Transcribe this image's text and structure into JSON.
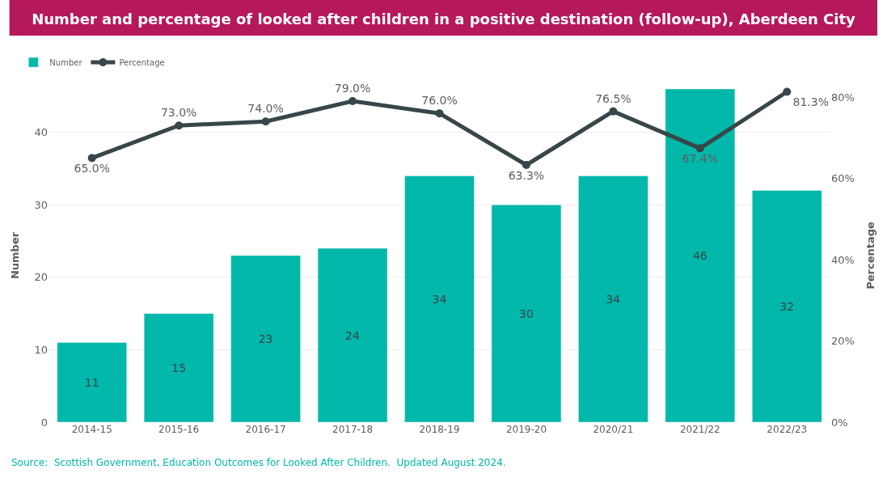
{
  "chart_data": {
    "type": "bar",
    "title": "Number and percentage of looked after children in a positive destination (follow-up), Aberdeen City",
    "categories": [
      "2014-15",
      "2015-16",
      "2016-17",
      "2017-18",
      "2018-19",
      "2019-20",
      "2020/21",
      "2021/22",
      "2022/23"
    ],
    "series": [
      {
        "name": "Number",
        "color": "#01b8aa",
        "values": [
          11,
          15,
          23,
          24,
          34,
          30,
          34,
          46,
          32
        ],
        "value_labels": [
          "11",
          "15",
          "23",
          "24",
          "34",
          "30",
          "34",
          "46",
          "32"
        ]
      },
      {
        "name": "Percentage",
        "type": "line",
        "axis": "y2",
        "color": "#374649",
        "marker": "circle",
        "values": [
          65.0,
          73.0,
          74.0,
          79.0,
          76.0,
          63.3,
          76.5,
          67.4,
          81.3
        ],
        "value_labels": [
          "65.0%",
          "73.0%",
          "74.0%",
          "79.0%",
          "76.0%",
          "63.3%",
          "76.5%",
          "67.4%",
          "81.3%"
        ]
      }
    ],
    "ylabel": "Number",
    "y2label": "Percentage",
    "ylim": [
      0,
      46
    ],
    "yticks": [
      0,
      10,
      20,
      30,
      40
    ],
    "y2lim": [
      0,
      82
    ],
    "y2ticks": [
      {
        "value": 0,
        "label": "0%"
      },
      {
        "value": 20,
        "label": "20%"
      },
      {
        "value": 40,
        "label": "40%"
      },
      {
        "value": 60,
        "label": "60%"
      },
      {
        "value": 80,
        "label": "80%"
      }
    ],
    "grid": "y",
    "legend": "top left",
    "annotations": [
      "Source:  Scottish Government, Education Outcomes for Looked After Children.  Updated August 2024."
    ]
  }
}
